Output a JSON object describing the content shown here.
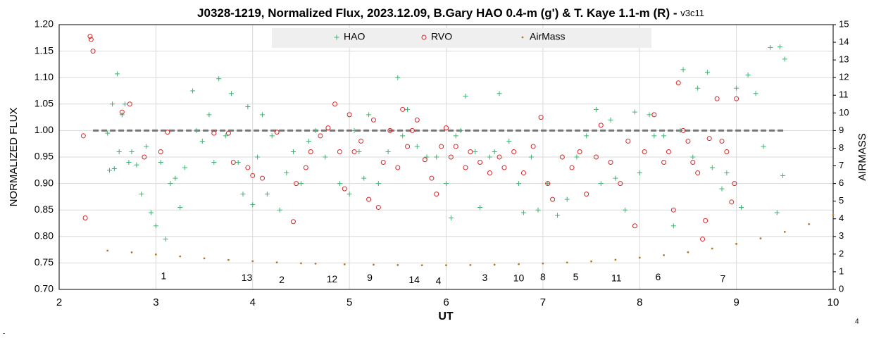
{
  "chart_data": {
    "type": "scatter",
    "title": "J0328-1219, Normalized Flux, 2023.12.09, B.Gary HAO 0.4-m (g') & T. Kaye 1.1-m (R) - ",
    "title_suffix": "v3c11",
    "xlabel": "UT",
    "ylabel": "NORMALIZED FLUX",
    "y2label": "AIRMASS",
    "xlim": [
      2,
      10
    ],
    "xticks": [
      2,
      3,
      4,
      5,
      6,
      7,
      8,
      9,
      10
    ],
    "ylim": [
      0.7,
      1.2
    ],
    "yticks": [
      {
        "value": 0.7,
        "label": "0.70"
      },
      {
        "value": 0.75,
        "label": "0.75"
      },
      {
        "value": 0.8,
        "label": "0.80"
      },
      {
        "value": 0.85,
        "label": "0.85"
      },
      {
        "value": 0.9,
        "label": "0.90"
      },
      {
        "value": 0.95,
        "label": "0.95"
      },
      {
        "value": 1.0,
        "label": "1.00"
      },
      {
        "value": 1.05,
        "label": "1.05"
      },
      {
        "value": 1.1,
        "label": "1.10"
      },
      {
        "value": 1.15,
        "label": "1.15"
      },
      {
        "value": 1.2,
        "label": "1.20"
      }
    ],
    "y2lim": [
      0,
      15
    ],
    "y2ticks": [
      0,
      1,
      2,
      3,
      4,
      5,
      6,
      7,
      8,
      9,
      10,
      11,
      12,
      13,
      14,
      15
    ],
    "grid": true,
    "legend": "top",
    "reference_line": {
      "y": 1.0,
      "x": [
        2.35,
        9.5
      ],
      "color": "#777777"
    },
    "series": [
      {
        "name": "HAO",
        "color": "#3cb371",
        "marker": "plus",
        "x": [
          2.5,
          2.52,
          2.55,
          2.57,
          2.6,
          2.62,
          2.65,
          2.68,
          2.72,
          2.75,
          2.8,
          2.85,
          2.9,
          2.95,
          3.0,
          3.05,
          3.1,
          3.15,
          3.2,
          3.25,
          3.3,
          3.38,
          3.42,
          3.48,
          3.55,
          3.6,
          3.65,
          3.72,
          3.78,
          3.85,
          3.9,
          3.95,
          4.0,
          4.05,
          4.1,
          4.15,
          4.2,
          4.28,
          4.35,
          4.42,
          4.5,
          4.58,
          4.65,
          4.75,
          4.9,
          5.0,
          5.05,
          5.1,
          5.15,
          5.2,
          5.3,
          5.4,
          5.5,
          5.55,
          5.6,
          5.7,
          5.8,
          5.9,
          6.0,
          6.05,
          6.1,
          6.15,
          6.2,
          6.3,
          6.35,
          6.45,
          6.5,
          6.55,
          6.65,
          6.75,
          6.8,
          6.88,
          6.95,
          7.05,
          7.15,
          7.25,
          7.35,
          7.45,
          7.55,
          7.6,
          7.7,
          7.75,
          7.85,
          7.95,
          8.0,
          8.1,
          8.15,
          8.25,
          8.35,
          8.42,
          8.45,
          8.55,
          8.6,
          8.7,
          8.75,
          8.85,
          8.9,
          9.0,
          9.05,
          9.12,
          9.2,
          9.28,
          9.35,
          9.42,
          9.45,
          9.5,
          9.48
        ],
        "values": [
          0.995,
          0.925,
          1.05,
          0.928,
          1.107,
          0.96,
          1.03,
          1.05,
          0.94,
          0.96,
          0.935,
          0.88,
          0.97,
          0.845,
          0.82,
          0.94,
          0.795,
          0.9,
          0.91,
          0.855,
          0.93,
          1.075,
          1.0,
          0.98,
          1.03,
          0.94,
          1.098,
          0.99,
          1.07,
          0.94,
          0.88,
          1.045,
          0.86,
          0.95,
          1.03,
          0.88,
          0.99,
          0.85,
          0.92,
          0.96,
          0.9,
          0.98,
          1.0,
          0.95,
          0.9,
          0.88,
          1.0,
          0.96,
          0.91,
          1.03,
          0.9,
          0.96,
          1.1,
          0.99,
          1.04,
          0.97,
          0.95,
          0.95,
          0.9,
          0.835,
          0.99,
          1.0,
          1.065,
          0.96,
          0.855,
          0.95,
          0.96,
          1.07,
          0.98,
          0.9,
          0.845,
          0.95,
          0.85,
          0.9,
          0.84,
          0.87,
          0.95,
          0.99,
          1.04,
          0.9,
          1.02,
          0.91,
          0.85,
          1.035,
          0.92,
          1.03,
          0.99,
          0.99,
          0.82,
          1.0,
          1.115,
          0.95,
          1.08,
          1.11,
          0.93,
          0.89,
          0.92,
          1.08,
          0.855,
          1.105,
          1.07,
          0.97,
          1.157,
          0.845,
          1.158,
          1.135,
          0.915
        ]
      },
      {
        "name": "RVO",
        "color": "#d62728",
        "marker": "circle",
        "x": [
          2.25,
          2.27,
          2.32,
          2.33,
          2.35,
          2.65,
          2.73,
          2.88,
          3.05,
          3.12,
          3.6,
          3.75,
          3.8,
          3.95,
          4.0,
          4.1,
          4.25,
          4.42,
          4.45,
          4.55,
          4.6,
          4.7,
          4.78,
          4.85,
          4.9,
          4.95,
          5.0,
          5.05,
          5.12,
          5.2,
          5.25,
          5.3,
          5.35,
          5.42,
          5.5,
          5.55,
          5.6,
          5.65,
          5.7,
          5.78,
          5.85,
          5.9,
          5.95,
          6.0,
          6.05,
          6.1,
          6.2,
          6.25,
          6.35,
          6.45,
          6.55,
          6.6,
          6.7,
          6.8,
          6.9,
          6.98,
          7.05,
          7.1,
          7.2,
          7.3,
          7.38,
          7.45,
          7.55,
          7.6,
          7.7,
          7.8,
          7.88,
          7.95,
          8.05,
          8.15,
          8.25,
          8.3,
          8.35,
          8.4,
          8.45,
          8.5,
          8.55,
          8.6,
          8.65,
          8.68,
          8.72,
          8.8,
          8.85,
          8.9,
          8.95,
          9.0,
          8.98
        ],
        "values": [
          0.99,
          0.835,
          1.178,
          1.172,
          1.15,
          1.035,
          1.05,
          0.95,
          0.96,
          0.997,
          0.995,
          0.995,
          0.94,
          0.93,
          0.915,
          0.91,
          0.997,
          0.828,
          0.9,
          0.93,
          0.96,
          0.99,
          1.005,
          1.05,
          0.96,
          0.89,
          1.03,
          0.96,
          0.98,
          0.87,
          1.02,
          0.855,
          0.94,
          1.0,
          0.93,
          1.04,
          0.97,
          1.0,
          1.02,
          0.945,
          0.91,
          0.88,
          0.97,
          1.005,
          0.95,
          0.97,
          0.93,
          0.96,
          0.94,
          0.92,
          0.95,
          0.93,
          0.96,
          0.92,
          0.97,
          1.025,
          0.9,
          0.87,
          0.95,
          0.93,
          0.96,
          0.88,
          0.95,
          1.01,
          0.94,
          0.9,
          0.98,
          0.82,
          0.96,
          1.03,
          0.94,
          0.96,
          0.85,
          1.09,
          1.0,
          0.98,
          0.94,
          0.92,
          0.795,
          0.83,
          0.985,
          1.06,
          0.98,
          0.96,
          0.865,
          1.06,
          0.9
        ]
      },
      {
        "name": "AirMass",
        "color": "#b8782a",
        "marker": "dot",
        "axis": "y2",
        "x": [
          2.5,
          2.75,
          3.0,
          3.25,
          3.5,
          3.75,
          4.0,
          4.25,
          4.5,
          4.65,
          4.95,
          5.25,
          5.5,
          5.75,
          6.0,
          6.25,
          6.5,
          6.75,
          7.0,
          7.25,
          7.5,
          7.75,
          8.0,
          8.25,
          8.5,
          8.75,
          9.0,
          9.25,
          9.5,
          9.75,
          10.0
        ],
        "values": [
          2.2,
          2.1,
          1.98,
          1.87,
          1.76,
          1.67,
          1.6,
          1.53,
          1.48,
          1.46,
          1.42,
          1.4,
          1.38,
          1.37,
          1.37,
          1.38,
          1.4,
          1.43,
          1.47,
          1.52,
          1.59,
          1.68,
          1.8,
          1.94,
          2.11,
          2.32,
          2.58,
          2.89,
          3.26,
          3.7,
          4.22
        ]
      }
    ],
    "annotations": [
      {
        "text": "1",
        "x": 3.08,
        "y": 0.724
      },
      {
        "text": "13",
        "x": 3.94,
        "y": 0.721
      },
      {
        "text": "2",
        "x": 4.3,
        "y": 0.717
      },
      {
        "text": "12",
        "x": 4.82,
        "y": 0.718
      },
      {
        "text": "9",
        "x": 5.21,
        "y": 0.721
      },
      {
        "text": "14",
        "x": 5.67,
        "y": 0.717
      },
      {
        "text": "4",
        "x": 5.92,
        "y": 0.715
      },
      {
        "text": "3",
        "x": 6.4,
        "y": 0.721
      },
      {
        "text": "10",
        "x": 6.75,
        "y": 0.72
      },
      {
        "text": "8",
        "x": 7.0,
        "y": 0.722
      },
      {
        "text": "5",
        "x": 7.34,
        "y": 0.722
      },
      {
        "text": "11",
        "x": 7.76,
        "y": 0.72
      },
      {
        "text": "6",
        "x": 8.19,
        "y": 0.722
      },
      {
        "text": "7",
        "x": 8.86,
        "y": 0.719
      }
    ],
    "footnote": "4",
    "corner_mark": "-"
  }
}
